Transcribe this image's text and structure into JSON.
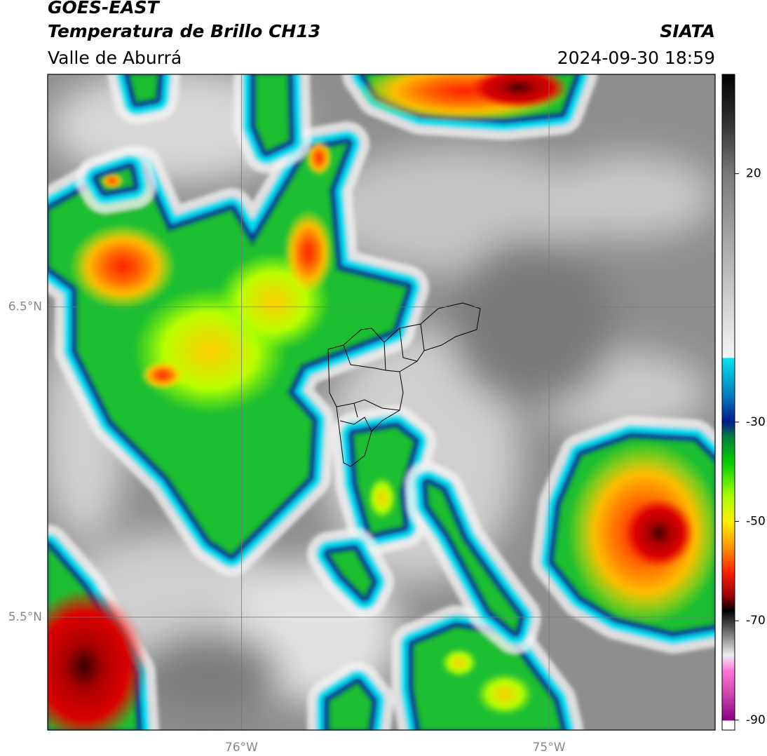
{
  "chart_data": {
    "type": "map",
    "title": "GOES-EAST",
    "subtitle": "Temperatura de Brillo CH13",
    "region": "Valle de Aburrá",
    "source": "SIATA",
    "datetime": "2024-09-30 18:59",
    "xlim": [
      -76.63,
      -74.46
    ],
    "ylim": [
      5.136,
      7.25
    ],
    "xticks": [
      {
        "value": -76,
        "label": "76°W"
      },
      {
        "value": -75,
        "label": "75°W"
      }
    ],
    "yticks": [
      {
        "value": 5.5,
        "label": "5.5°N"
      },
      {
        "value": 6.5,
        "label": "6.5°N"
      }
    ],
    "colorbar": {
      "lim": [
        -92,
        40
      ],
      "ticks": [
        20,
        -30,
        -50,
        -70,
        -90
      ]
    },
    "grid": true
  }
}
